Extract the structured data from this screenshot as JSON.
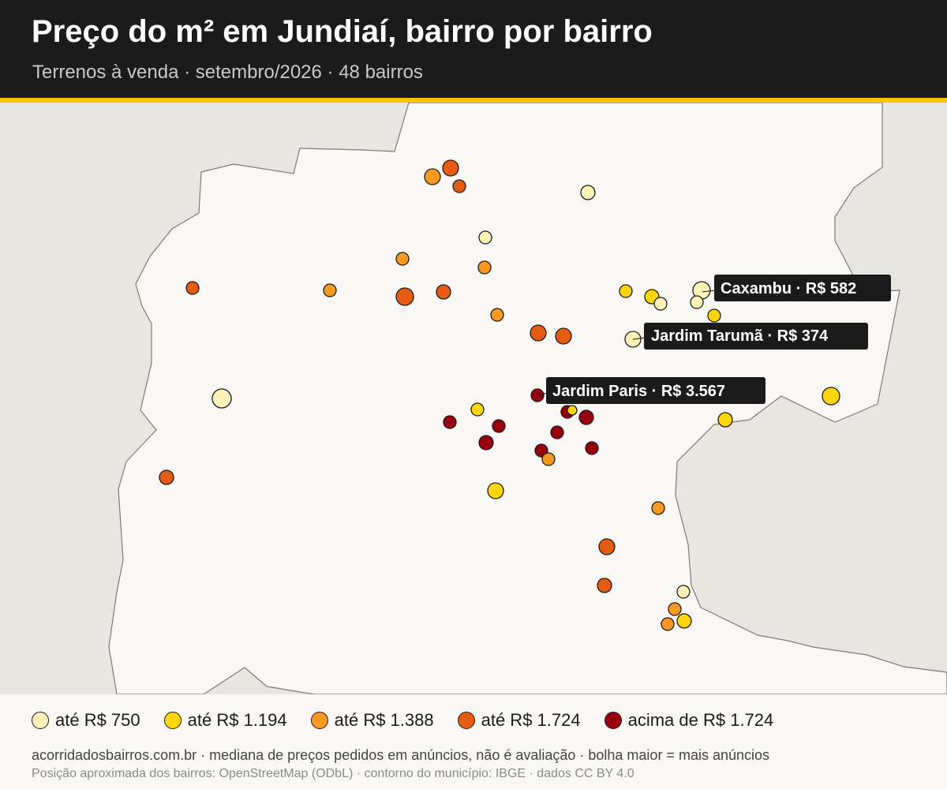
{
  "header": {
    "title": "Preço do m² em Jundiaí, bairro por bairro",
    "subtitle": "Terrenos à venda · setembro/2026 · 48 bairros"
  },
  "map": {
    "background_color": "#e8e6e0",
    "municipality_fill": "#f9f8f5",
    "boundary_color": "#7a7a7a"
  },
  "categories": [
    {
      "key": "c1",
      "label": "até R$ 750",
      "color": "#fdf1b8"
    },
    {
      "key": "c2",
      "label": "até R$ 1.194",
      "color": "#fcd50a"
    },
    {
      "key": "c3",
      "label": "até R$ 1.388",
      "color": "#f89a22"
    },
    {
      "key": "c4",
      "label": "até R$ 1.724",
      "color": "#e65b12"
    },
    {
      "key": "c5",
      "label": "acima de R$ 1.724",
      "color": "#99000d"
    }
  ],
  "callouts": [
    {
      "name": "Caxambu",
      "price": "R$ 582",
      "text": "Caxambu · R$ 582"
    },
    {
      "name": "Jardim Tarumã",
      "price": "R$ 374",
      "text": "Jardim Tarumã · R$ 374"
    },
    {
      "name": "Jardim Paris",
      "price": "R$ 3.567",
      "text": "Jardim Paris · R$ 3.567"
    }
  ],
  "footer": {
    "line1": "acorridadosbairros.com.br · mediana de preços pedidos em anúncios, não é avaliação · bolha maior = mais anúncios",
    "line2": "Posição aproximada dos bairros: OpenStreetMap (ODbL) · contorno do município: IBGE · dados CC BY 4.0"
  }
}
